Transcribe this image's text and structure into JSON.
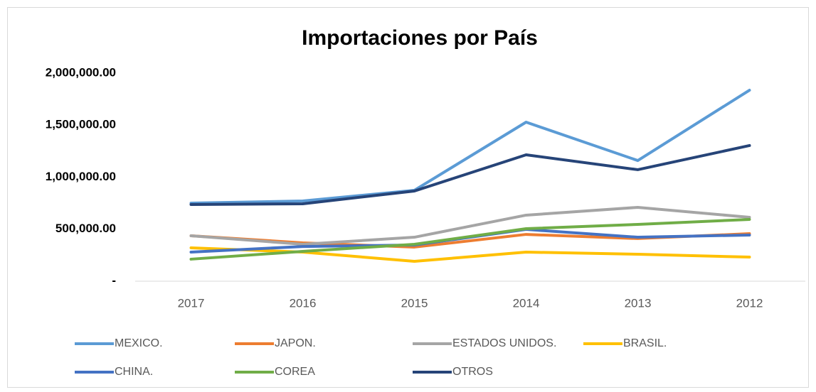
{
  "chart_data": {
    "type": "line",
    "title": "Importaciones por País",
    "categories": [
      "2017",
      "2016",
      "2015",
      "2014",
      "2013",
      "2012"
    ],
    "ylim": [
      0,
      2000000
    ],
    "yticks": [
      {
        "value": 0,
        "label": "-"
      },
      {
        "value": 500000,
        "label": "500,000.00"
      },
      {
        "value": 1000000,
        "label": "1,000,000.00"
      },
      {
        "value": 1500000,
        "label": "1,500,000.00"
      },
      {
        "value": 2000000,
        "label": "2,000,000.00"
      }
    ],
    "grid": false,
    "legend": "bottom",
    "series": [
      {
        "name": "MEXICO.",
        "color": "#5b9bd5",
        "values": [
          751000,
          771000,
          874000,
          1529000,
          1160000,
          1836000
        ]
      },
      {
        "name": "JAPON.",
        "color": "#ed7d31",
        "values": [
          437000,
          369000,
          328000,
          450000,
          410000,
          457000
        ]
      },
      {
        "name": "ESTADOS UNIDOS.",
        "color": "#a5a5a5",
        "values": [
          437000,
          355000,
          423000,
          635000,
          710000,
          614000
        ]
      },
      {
        "name": "BRASIL.",
        "color": "#ffc000",
        "values": [
          321000,
          280000,
          191000,
          280000,
          259000,
          232000
        ]
      },
      {
        "name": "CHINA.",
        "color": "#4472c4",
        "values": [
          280000,
          334000,
          348000,
          498000,
          423000,
          444000
        ]
      },
      {
        "name": "COREA",
        "color": "#70ad47",
        "values": [
          212000,
          287000,
          355000,
          505000,
          546000,
          594000
        ]
      },
      {
        "name": "OTROS",
        "color": "#264478",
        "values": [
          737000,
          744000,
          867000,
          1215000,
          1072000,
          1304000
        ]
      }
    ]
  }
}
